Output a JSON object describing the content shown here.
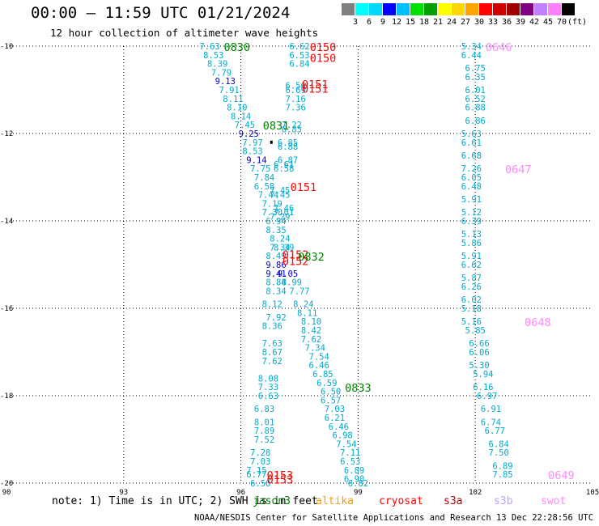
{
  "title": "00:00 – 11:59 UTC 01/21/2024",
  "subtitle": "12 hour collection of altimeter wave heights",
  "colorbar": {
    "unit_label": "(ft)",
    "ticks": [
      "3",
      "6",
      "9",
      "12",
      "15",
      "18",
      "21",
      "24",
      "27",
      "30",
      "33",
      "36",
      "39",
      "42",
      "45",
      "70"
    ],
    "colors": [
      "#808080",
      "#00ffff",
      "#00d8ff",
      "#0000ff",
      "#00bfff",
      "#00e000",
      "#00a000",
      "#ffff00",
      "#ffd700",
      "#ffa500",
      "#ff0000",
      "#d00000",
      "#a00000",
      "#800080",
      "#c080ff",
      "#ff80ff",
      "#000000"
    ]
  },
  "axes": {
    "x_ticks": [
      "90",
      "93",
      "96",
      "99",
      "102",
      "105"
    ],
    "y_ticks": [
      "-10",
      "-12",
      "-14",
      "-16",
      "-18",
      "-20"
    ]
  },
  "note": "note: 1) Time is in UTC; 2) SWH is in feet",
  "missions": [
    {
      "name": "jason3",
      "color": "#008000"
    },
    {
      "name": "altika",
      "color": "#ff9900"
    },
    {
      "name": "cryosat",
      "color": "#ff0000"
    },
    {
      "name": "s3a",
      "color": "#c00000"
    },
    {
      "name": "s3b",
      "color": "#c0a0ff"
    },
    {
      "name": "swot",
      "color": "#ff88ff"
    }
  ],
  "credit": "NOAA/NESDIS Center for Satellite Applications and Research    13 Dec 22:28:56 UTC 2024",
  "chart_data": {
    "type": "scatter",
    "title": "00:00 – 11:59 UTC 01/21/2024",
    "subtitle": "12 hour collection of altimeter wave heights",
    "xlim": [
      90,
      105
    ],
    "ylim": [
      -20,
      -10
    ],
    "grid": true,
    "unit": "ft",
    "tracks": [
      {
        "name": "track-a",
        "color": "#00aacc",
        "points": [
          [
            95.2,
            -10.0,
            "7.63"
          ],
          [
            95.3,
            -10.2,
            "8.53"
          ],
          [
            95.4,
            -10.4,
            "8.39"
          ],
          [
            95.5,
            -10.6,
            "7.79"
          ],
          [
            95.6,
            -10.8,
            "9.13"
          ],
          [
            95.7,
            -11.0,
            "7.91"
          ],
          [
            95.8,
            -11.2,
            "8.11"
          ],
          [
            95.9,
            -11.4,
            "8.10"
          ],
          [
            96.0,
            -11.6,
            "8.14"
          ],
          [
            96.1,
            -11.8,
            "7.45"
          ],
          [
            96.2,
            -12.0,
            "9.25"
          ],
          [
            96.3,
            -12.2,
            "7.97"
          ],
          [
            96.3,
            -12.4,
            "8.53"
          ],
          [
            96.4,
            -12.6,
            "9.14"
          ],
          [
            96.5,
            -12.8,
            "7.75"
          ],
          [
            96.6,
            -13.0,
            "7.84"
          ],
          [
            96.6,
            -13.2,
            "6.58"
          ],
          [
            96.7,
            -13.4,
            "7.44"
          ],
          [
            96.8,
            -13.6,
            "7.19"
          ],
          [
            96.8,
            -13.8,
            "7.30"
          ],
          [
            96.9,
            -14.0,
            "6.94"
          ],
          [
            96.9,
            -14.2,
            "8.35"
          ],
          [
            97.0,
            -14.4,
            "8.24"
          ],
          [
            97.0,
            -14.6,
            "7.34"
          ],
          [
            96.9,
            -14.8,
            "8.49"
          ],
          [
            96.9,
            -15.0,
            "9.86"
          ],
          [
            96.9,
            -15.2,
            "9.41"
          ],
          [
            96.9,
            -15.4,
            "8.84"
          ],
          [
            96.9,
            -15.6,
            "8.34"
          ],
          [
            96.8,
            -15.9,
            "8.12"
          ],
          [
            96.9,
            -16.2,
            "7.92"
          ],
          [
            96.8,
            -16.4,
            "8.36"
          ],
          [
            96.8,
            -16.8,
            "7.63"
          ],
          [
            96.8,
            -17.0,
            "8.67"
          ],
          [
            96.8,
            -17.2,
            "7.62"
          ],
          [
            96.7,
            -17.6,
            "8.08"
          ],
          [
            96.7,
            -17.8,
            "7.33"
          ],
          [
            96.7,
            -18.0,
            "6.63"
          ],
          [
            96.6,
            -18.3,
            "6.83"
          ],
          [
            96.6,
            -18.6,
            "8.01"
          ],
          [
            96.6,
            -18.8,
            "7.89"
          ],
          [
            96.6,
            -19.0,
            "7.52"
          ],
          [
            96.5,
            -19.3,
            "7.28"
          ],
          [
            96.5,
            -19.5,
            "7.03"
          ],
          [
            96.4,
            -19.7,
            "7.15"
          ],
          [
            96.4,
            -19.8,
            "6.77"
          ],
          [
            96.5,
            -20.0,
            "6.50"
          ]
        ]
      },
      {
        "name": "track-b",
        "color": "#00aacc",
        "points": [
          [
            97.5,
            -10.0,
            "6.62"
          ],
          [
            97.5,
            -10.2,
            "6.53"
          ],
          [
            97.5,
            -10.4,
            "6.84"
          ],
          [
            97.4,
            -10.9,
            "6.56"
          ],
          [
            97.4,
            -11.0,
            "6.69"
          ],
          [
            97.4,
            -11.2,
            "7.16"
          ],
          [
            97.4,
            -11.4,
            "7.36"
          ],
          [
            97.3,
            -11.8,
            "7.22"
          ],
          [
            97.3,
            -11.9,
            "6.85"
          ],
          [
            97.2,
            -12.2,
            "6.85"
          ],
          [
            97.2,
            -12.3,
            "6.88"
          ],
          [
            97.2,
            -12.6,
            "6.87"
          ],
          [
            97.1,
            -12.7,
            "6.61"
          ],
          [
            97.1,
            -12.8,
            "6.58"
          ],
          [
            97.0,
            -13.3,
            "7.45"
          ],
          [
            97.0,
            -13.4,
            "7.45"
          ],
          [
            97.1,
            -13.7,
            "7.46"
          ],
          [
            97.1,
            -13.8,
            "7.01"
          ],
          [
            97.0,
            -13.9,
            "7.29"
          ],
          [
            97.1,
            -14.6,
            "8.39"
          ],
          [
            97.2,
            -15.2,
            "9.05"
          ],
          [
            97.3,
            -15.4,
            "8.99"
          ],
          [
            97.5,
            -15.6,
            "7.77"
          ],
          [
            97.6,
            -15.9,
            "8.24"
          ],
          [
            97.7,
            -16.1,
            "8.11"
          ],
          [
            97.8,
            -16.3,
            "8.10"
          ],
          [
            97.8,
            -16.5,
            "8.42"
          ],
          [
            97.8,
            -16.7,
            "7.62"
          ],
          [
            97.9,
            -16.9,
            "7.34"
          ],
          [
            98.0,
            -17.1,
            "7.54"
          ],
          [
            98.0,
            -17.3,
            "6.46"
          ],
          [
            98.1,
            -17.5,
            "6.85"
          ],
          [
            98.2,
            -17.7,
            "6.59"
          ],
          [
            98.3,
            -17.9,
            "6.50"
          ],
          [
            98.3,
            -18.1,
            "6.57"
          ],
          [
            98.4,
            -18.3,
            "7.03"
          ],
          [
            98.4,
            -18.5,
            "6.21"
          ],
          [
            98.5,
            -18.7,
            "6.46"
          ],
          [
            98.6,
            -18.9,
            "6.98"
          ],
          [
            98.7,
            -19.1,
            "7.54"
          ],
          [
            98.8,
            -19.3,
            "7.11"
          ],
          [
            98.8,
            -19.5,
            "6.53"
          ],
          [
            98.9,
            -19.7,
            "6.89"
          ],
          [
            98.9,
            -19.9,
            "6.90"
          ],
          [
            99.0,
            -20.0,
            "6.82"
          ]
        ]
      },
      {
        "name": "track-c",
        "color": "#00aacc",
        "points": [
          [
            101.9,
            -10.0,
            "5.34"
          ],
          [
            101.9,
            -10.2,
            "6.44"
          ],
          [
            102.0,
            -10.5,
            "6.75"
          ],
          [
            102.0,
            -10.7,
            "6.35"
          ],
          [
            102.0,
            -11.0,
            "6.01"
          ],
          [
            102.0,
            -11.2,
            "6.52"
          ],
          [
            102.0,
            -11.4,
            "6.88"
          ],
          [
            102.0,
            -11.7,
            "6.86"
          ],
          [
            101.9,
            -12.0,
            "5.63"
          ],
          [
            101.9,
            -12.2,
            "6.61"
          ],
          [
            101.9,
            -12.5,
            "6.68"
          ],
          [
            101.9,
            -12.8,
            "7.26"
          ],
          [
            101.9,
            -13.0,
            "6.05"
          ],
          [
            101.9,
            -13.2,
            "6.48"
          ],
          [
            101.9,
            -13.5,
            "5.91"
          ],
          [
            101.9,
            -13.8,
            "5.12"
          ],
          [
            101.9,
            -14.0,
            "6.39"
          ],
          [
            101.9,
            -14.3,
            "5.13"
          ],
          [
            101.9,
            -14.5,
            "5.86"
          ],
          [
            101.9,
            -14.8,
            "5.91"
          ],
          [
            101.9,
            -15.0,
            "6.62"
          ],
          [
            101.9,
            -15.3,
            "5.87"
          ],
          [
            101.9,
            -15.5,
            "6.26"
          ],
          [
            101.9,
            -15.8,
            "6.02"
          ],
          [
            101.9,
            -16.0,
            "5.18"
          ],
          [
            101.9,
            -16.3,
            "5.16"
          ],
          [
            102.0,
            -16.5,
            "5.85"
          ],
          [
            102.1,
            -16.8,
            "6.66"
          ],
          [
            102.1,
            -17.0,
            "6.06"
          ],
          [
            102.1,
            -17.3,
            "5.30"
          ],
          [
            102.2,
            -17.5,
            "5.94"
          ],
          [
            102.2,
            -17.8,
            "6.16"
          ],
          [
            102.3,
            -18.0,
            "6.97"
          ],
          [
            102.4,
            -18.3,
            "6.91"
          ],
          [
            102.4,
            -18.6,
            "6.74"
          ],
          [
            102.5,
            -18.8,
            "6.77"
          ],
          [
            102.6,
            -19.1,
            "6.84"
          ],
          [
            102.6,
            -19.3,
            "7.50"
          ],
          [
            102.7,
            -19.6,
            "6.89"
          ],
          [
            102.7,
            -19.8,
            "7.85"
          ]
        ]
      }
    ],
    "pass_labels": [
      {
        "text": "0830",
        "x": 95.9,
        "y": -10.0,
        "color": "#008000"
      },
      {
        "text": "0150",
        "x": 98.1,
        "y": -10.0,
        "color": "#ff0000"
      },
      {
        "text": "0150",
        "x": 98.1,
        "y": -10.25,
        "color": "#ff0000"
      },
      {
        "text": "0151",
        "x": 97.9,
        "y": -10.85,
        "color": "#ff0000"
      },
      {
        "text": "0151",
        "x": 97.9,
        "y": -10.95,
        "color": "#ff0000"
      },
      {
        "text": "0831",
        "x": 96.9,
        "y": -11.8,
        "color": "#008000"
      },
      {
        "text": "0151",
        "x": 97.6,
        "y": -13.2,
        "color": "#ff0000"
      },
      {
        "text": "0152",
        "x": 97.4,
        "y": -14.75,
        "color": "#ff0000"
      },
      {
        "text": "0152",
        "x": 97.4,
        "y": -14.9,
        "color": "#ff0000"
      },
      {
        "text": "0832",
        "x": 97.8,
        "y": -14.8,
        "color": "#008000"
      },
      {
        "text": "0833",
        "x": 99.0,
        "y": -17.8,
        "color": "#008000"
      },
      {
        "text": "0153",
        "x": 97.0,
        "y": -19.8,
        "color": "#ff0000"
      },
      {
        "text": "0153",
        "x": 97.0,
        "y": -19.9,
        "color": "#ff0000"
      },
      {
        "text": "0646",
        "x": 102.6,
        "y": -10.0,
        "color": "#ff88ff"
      },
      {
        "text": "0647",
        "x": 103.1,
        "y": -12.8,
        "color": "#ff88ff"
      },
      {
        "text": "0648",
        "x": 103.6,
        "y": -16.3,
        "color": "#ff88ff"
      },
      {
        "text": "0649",
        "x": 104.2,
        "y": -19.8,
        "color": "#ff88ff"
      }
    ]
  }
}
